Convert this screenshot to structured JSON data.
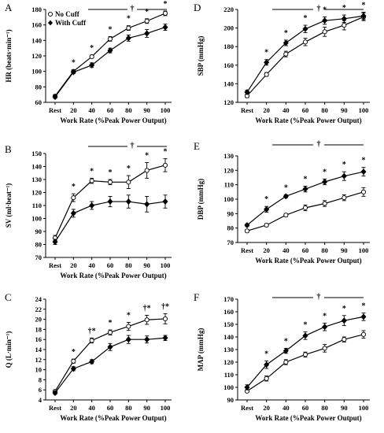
{
  "chart_data": [
    {
      "panel": "A",
      "type": "line",
      "ylabel": "HR (beats·min⁻¹)",
      "xlabel": "Work Rate (%Peak Power Output)",
      "categories": [
        "Rest",
        "20",
        "40",
        "60",
        "80",
        "90",
        "100"
      ],
      "ylim": [
        60,
        180
      ],
      "yticks": [
        60,
        80,
        100,
        120,
        140,
        160,
        180
      ],
      "legend": {
        "position": "top-left",
        "entries": [
          "No Cuff",
          "With Cuff"
        ]
      },
      "series": [
        {
          "name": "No Cuff",
          "marker": "open",
          "values": [
            68,
            100,
            119,
            142,
            156,
            165,
            175
          ],
          "err": [
            2,
            2,
            2,
            3,
            3,
            3,
            3
          ]
        },
        {
          "name": "With Cuff",
          "marker": "filled",
          "values": [
            67,
            99,
            108,
            127,
            143,
            149,
            157
          ],
          "err": [
            2,
            2,
            3,
            3,
            4,
            5,
            4
          ]
        }
      ],
      "sig_marks": [
        {
          "x": 1,
          "t": "*"
        },
        {
          "x": 2,
          "t": "*"
        },
        {
          "x": 3,
          "t": "*"
        },
        {
          "x": 4,
          "t": "*"
        },
        {
          "x": 5,
          "t": "*"
        },
        {
          "x": 6,
          "t": "*"
        }
      ],
      "dagger": "†"
    },
    {
      "panel": "D",
      "type": "line",
      "ylabel": "SBP (mmHg)",
      "xlabel": "Work Rate (%Peak Power Output)",
      "categories": [
        "Rest",
        "20",
        "40",
        "60",
        "80",
        "90",
        "100"
      ],
      "ylim": [
        120,
        220
      ],
      "yticks": [
        120,
        140,
        160,
        180,
        200,
        220
      ],
      "series": [
        {
          "name": "No Cuff",
          "marker": "open",
          "values": [
            127,
            150,
            172,
            185,
            196,
            203,
            212
          ],
          "err": [
            2,
            2,
            3,
            4,
            5,
            5,
            4
          ]
        },
        {
          "name": "With Cuff",
          "marker": "filled",
          "values": [
            131,
            163,
            184,
            199,
            208,
            210,
            213
          ],
          "err": [
            2,
            3,
            3,
            4,
            4,
            4,
            4
          ]
        }
      ],
      "sig_marks": [
        {
          "x": 1,
          "t": "*"
        },
        {
          "x": 2,
          "t": "*"
        },
        {
          "x": 3,
          "t": "*"
        },
        {
          "x": 4,
          "t": "*"
        },
        {
          "x": 5,
          "t": "*"
        },
        {
          "x": 6,
          "t": "*"
        }
      ],
      "dagger": "†"
    },
    {
      "panel": "B",
      "type": "line",
      "ylabel": "SV (ml·beat⁻¹)",
      "xlabel": "Work Rate (%Peak Power Output)",
      "categories": [
        "Rest",
        "20",
        "40",
        "60",
        "80",
        "90",
        "100"
      ],
      "ylim": [
        70,
        150
      ],
      "yticks": [
        70,
        80,
        90,
        100,
        110,
        120,
        130,
        140,
        150
      ],
      "series": [
        {
          "name": "No Cuff",
          "marker": "open",
          "values": [
            85,
            116,
            129,
            128,
            128,
            137,
            141
          ],
          "err": [
            2,
            3,
            2,
            2,
            5,
            6,
            5
          ]
        },
        {
          "name": "With Cuff",
          "marker": "filled",
          "values": [
            82,
            104,
            110,
            113,
            113,
            111,
            113
          ],
          "err": [
            2,
            3,
            3,
            4,
            5,
            6,
            5
          ]
        }
      ],
      "sig_marks": [
        {
          "x": 1,
          "t": "*"
        },
        {
          "x": 2,
          "t": "*"
        },
        {
          "x": 3,
          "t": "*"
        },
        {
          "x": 4,
          "t": "*"
        },
        {
          "x": 5,
          "t": "*"
        },
        {
          "x": 6,
          "t": "*"
        }
      ],
      "dagger": "†"
    },
    {
      "panel": "E",
      "type": "line",
      "ylabel": "DBP (mmHg)",
      "xlabel": "Work Rate (%Peak Power Output)",
      "categories": [
        "Rest",
        "20",
        "40",
        "60",
        "80",
        "90",
        "100"
      ],
      "ylim": [
        70,
        130
      ],
      "yticks": [
        70,
        80,
        90,
        100,
        110,
        120,
        130
      ],
      "series": [
        {
          "name": "No Cuff",
          "marker": "open",
          "values": [
            78,
            82,
            89,
            94,
            97,
            101,
            105
          ],
          "err": [
            1,
            1,
            1,
            2,
            2,
            2,
            3
          ]
        },
        {
          "name": "With Cuff",
          "marker": "filled",
          "values": [
            82,
            93,
            102,
            107,
            112,
            116,
            119
          ],
          "err": [
            1,
            2,
            1,
            2,
            2,
            3,
            3
          ]
        }
      ],
      "sig_marks": [
        {
          "x": 1,
          "t": "*"
        },
        {
          "x": 2,
          "t": "*"
        },
        {
          "x": 3,
          "t": "*"
        },
        {
          "x": 4,
          "t": "*"
        },
        {
          "x": 5,
          "t": "*"
        },
        {
          "x": 6,
          "t": "*"
        }
      ],
      "dagger": "†"
    },
    {
      "panel": "C",
      "type": "line",
      "ylabel": "Q (L·min⁻¹)",
      "xlabel": "Work Rate (%Peak Power Output)",
      "categories": [
        "Rest",
        "20",
        "40",
        "60",
        "80",
        "90",
        "100"
      ],
      "ylim": [
        4,
        24
      ],
      "yticks": [
        4,
        6,
        8,
        10,
        12,
        14,
        16,
        18,
        20,
        22,
        24
      ],
      "series": [
        {
          "name": "No Cuff",
          "marker": "open",
          "values": [
            5.7,
            11.7,
            15.8,
            17.4,
            18.6,
            19.9,
            20.1
          ],
          "err": [
            0.3,
            0.4,
            0.5,
            0.5,
            0.8,
            0.9,
            1.0
          ]
        },
        {
          "name": "With Cuff",
          "marker": "filled",
          "values": [
            5.4,
            10.2,
            11.6,
            14.5,
            16.0,
            16.0,
            16.3
          ],
          "err": [
            0.3,
            0.4,
            0.4,
            0.7,
            0.8,
            0.7,
            0.5
          ]
        }
      ],
      "sig_marks": [
        {
          "x": 1,
          "t": "*"
        },
        {
          "x": 2,
          "t": "†*"
        },
        {
          "x": 3,
          "t": "*"
        },
        {
          "x": 4,
          "t": "*"
        },
        {
          "x": 5,
          "t": "†*"
        },
        {
          "x": 6,
          "t": "†*"
        }
      ]
    },
    {
      "panel": "F",
      "type": "line",
      "ylabel": "MAP (mmHg)",
      "xlabel": "Work Rate (%Peak Power Output)",
      "categories": [
        "Rest",
        "20",
        "40",
        "60",
        "80",
        "90",
        "100"
      ],
      "ylim": [
        90,
        170
      ],
      "yticks": [
        90,
        100,
        110,
        120,
        130,
        140,
        150,
        160,
        170
      ],
      "series": [
        {
          "name": "No Cuff",
          "marker": "open",
          "values": [
            97,
            107,
            120,
            126,
            131,
            138,
            142
          ],
          "err": [
            1,
            2,
            2,
            2,
            3,
            2,
            3
          ]
        },
        {
          "name": "With Cuff",
          "marker": "filled",
          "values": [
            100,
            118,
            129,
            141,
            148,
            153,
            156
          ],
          "err": [
            2,
            3,
            2,
            3,
            3,
            4,
            3
          ]
        }
      ],
      "sig_marks": [
        {
          "x": 1,
          "t": "*"
        },
        {
          "x": 2,
          "t": "*"
        },
        {
          "x": 3,
          "t": "*"
        },
        {
          "x": 4,
          "t": "*"
        },
        {
          "x": 5,
          "t": "*"
        },
        {
          "x": 6,
          "t": "*"
        }
      ],
      "dagger": "†"
    }
  ]
}
